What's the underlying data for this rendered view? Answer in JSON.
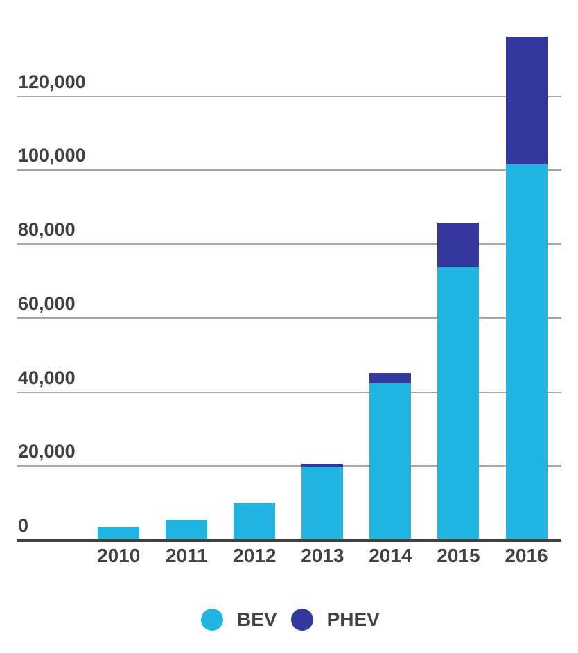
{
  "page": {
    "background": "#FFFFFF"
  },
  "chart_data": {
    "type": "bar",
    "stacked": true,
    "title": "",
    "xlabel": "",
    "ylabel": "",
    "categories": [
      "2010",
      "2011",
      "2012",
      "2013",
      "2014",
      "2015",
      "2016"
    ],
    "series": [
      {
        "name": "BEV",
        "color": "#22B5E2",
        "values": [
          3500,
          5400,
          10100,
          19900,
          42500,
          73800,
          101500
        ]
      },
      {
        "name": "PHEV",
        "color": "#34389C",
        "values": [
          0,
          0,
          0,
          800,
          2700,
          12000,
          34500
        ]
      }
    ],
    "ylim": [
      0,
      146000
    ],
    "yticks": [
      {
        "value": 0,
        "label": "0"
      },
      {
        "value": 20000,
        "label": "20,000"
      },
      {
        "value": 40000,
        "label": "40,000"
      },
      {
        "value": 60000,
        "label": "60,000"
      },
      {
        "value": 80000,
        "label": "80,000"
      },
      {
        "value": 100000,
        "label": "100,000"
      },
      {
        "value": 120000,
        "label": "120,000"
      }
    ],
    "grid": true,
    "legend_position": "bottom",
    "colors": {
      "gridline": "#A6A6A6",
      "axis_line": "#404040",
      "text": "#414141"
    }
  }
}
